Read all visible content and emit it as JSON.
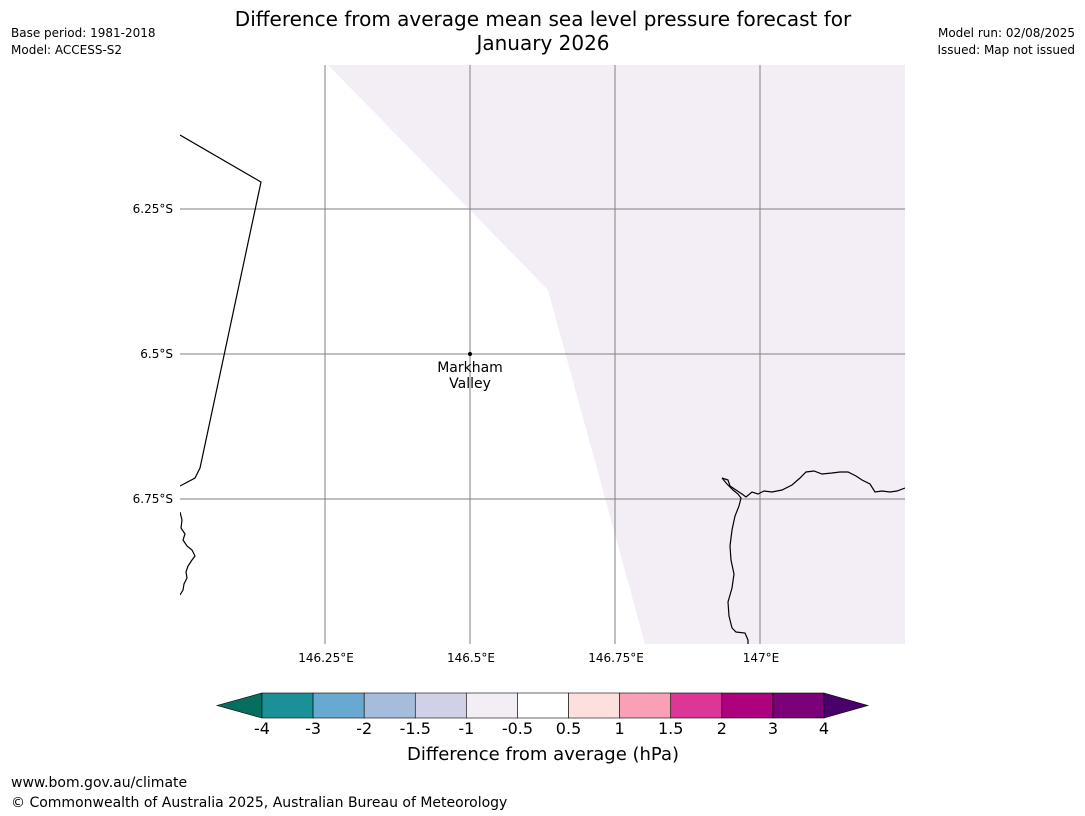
{
  "title": {
    "line1": "Difference from average mean sea level pressure forecast for",
    "line2": "January 2026"
  },
  "meta_left": {
    "base_period": "Base period: 1981-2018",
    "model": "Model: ACCESS-S2"
  },
  "meta_right": {
    "model_run": "Model run: 02/08/2025",
    "issued": "Issued: Map not issued"
  },
  "map": {
    "latitude_labels": [
      "6.25°S",
      "6.5°S",
      "6.75°S"
    ],
    "longitude_labels": [
      "146.25°E",
      "146.5°E",
      "146.75°E",
      "147°E"
    ],
    "place": {
      "name_line1": "Markham",
      "name_line2": "Valley"
    },
    "shaded_region": {
      "category": "-0.5 to 0.5... shaded as -1 to -0.5",
      "color": "#f3edf6"
    },
    "colors": {
      "land_outline": "#000000",
      "gridline": "#808080"
    }
  },
  "colorbar": {
    "title": "Difference from average (hPa)",
    "tick_labels": [
      "-4",
      "-3",
      "-2",
      "-1.5",
      "-1",
      "-0.5",
      "0.5",
      "1",
      "1.5",
      "2",
      "3",
      "4"
    ],
    "colors": [
      "#066e5f",
      "#1a9196",
      "#67a9d0",
      "#a6bcdd",
      "#d0d1e6",
      "#f3edf6",
      "#ffffff",
      "#fde0dd",
      "#f99fb6",
      "#dc3796",
      "#ae017e",
      "#7a0177",
      "#49006a"
    ]
  },
  "footer": {
    "url": "www.bom.gov.au/climate",
    "copyright": "© Commonwealth of Australia 2025, Australian Bureau of Meteorology"
  }
}
